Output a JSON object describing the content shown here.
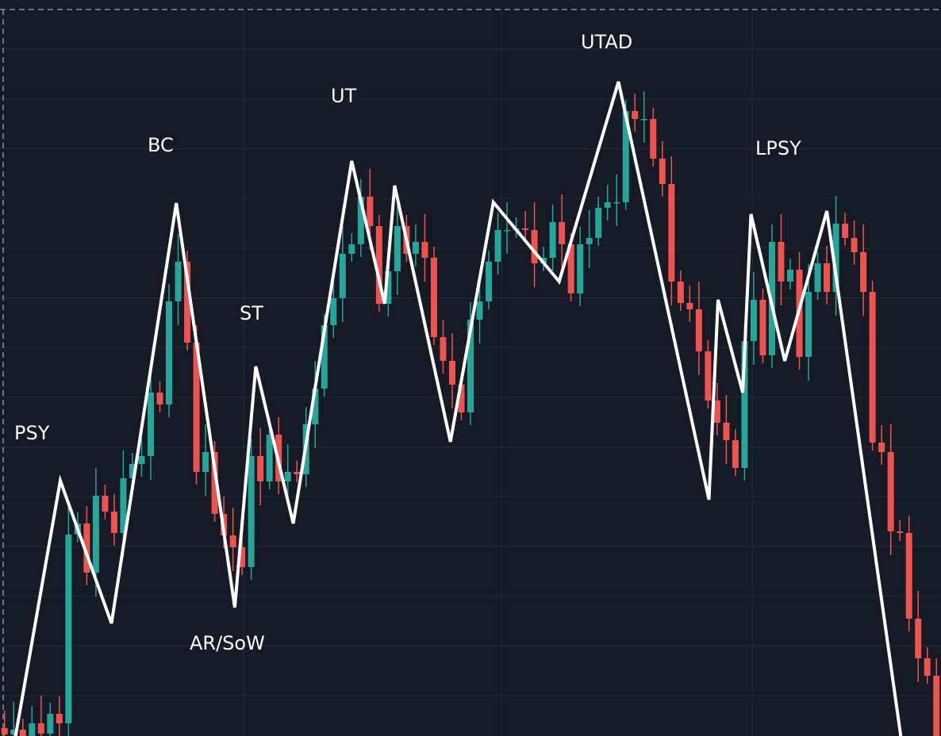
{
  "chart_data": {
    "type": "candlestick",
    "labels": [
      "PSY",
      "BC",
      "AR/SoW",
      "ST",
      "UT",
      "UTAD",
      "LPSY"
    ],
    "up_color": "#26a69a",
    "down_color": "#ef5350",
    "line_color": "#ffffff",
    "xlim": [
      -0.5,
      102.5
    ],
    "ylim": [
      0,
      928
    ],
    "open": [
      10,
      2,
      8,
      0,
      16,
      3,
      28,
      16,
      254,
      268,
      206,
      303,
      283,
      256,
      325,
      343,
      353,
      433,
      418,
      548,
      598,
      496,
      333,
      358,
      280,
      253,
      238,
      213,
      353,
      321,
      380,
      321,
      333,
      330,
      393,
      438,
      518,
      552,
      608,
      620,
      680,
      643,
      545,
      586,
      643,
      608,
      623,
      603,
      503,
      473,
      443,
      408,
      525,
      548,
      598,
      638,
      638,
      640,
      638,
      596,
      603,
      648,
      620,
      558,
      620,
      628,
      666,
      673,
      673,
      788,
      778,
      778,
      728,
      696,
      573,
      546,
      538,
      485,
      423,
      395,
      373,
      338,
      498,
      550,
      480,
      623,
      573,
      588,
      478,
      560,
      596,
      560,
      646,
      628,
      610,
      560,
      370,
      358,
      258,
      256,
      148,
      98,
      76
    ],
    "high": [
      32,
      43,
      22,
      38,
      51,
      42,
      50,
      289,
      282,
      290,
      338,
      317,
      305,
      360,
      357,
      375,
      468,
      447,
      570,
      633,
      612,
      518,
      393,
      372,
      302,
      288,
      252,
      375,
      388,
      394,
      402,
      368,
      347,
      415,
      473,
      532,
      574,
      643,
      634,
      702,
      715,
      657,
      608,
      678,
      657,
      645,
      658,
      617,
      525,
      508,
      457,
      547,
      583,
      612,
      660,
      673,
      654,
      662,
      673,
      617,
      670,
      683,
      634,
      642,
      663,
      680,
      695,
      708,
      802,
      810,
      813,
      792,
      750,
      731,
      587,
      568,
      573,
      499,
      445,
      430,
      387,
      520,
      585,
      564,
      645,
      658,
      602,
      610,
      595,
      610,
      618,
      681,
      660,
      650,
      645,
      574,
      392,
      393,
      272,
      278,
      183,
      112,
      98
    ],
    "low": [
      -14,
      -28,
      -10,
      -16,
      -27,
      -7,
      0,
      -14,
      244,
      190,
      176,
      273,
      240,
      226,
      315,
      327,
      323,
      408,
      402,
      518,
      486,
      317,
      303,
      270,
      237,
      208,
      203,
      197,
      291,
      311,
      305,
      291,
      320,
      314,
      363,
      428,
      502,
      522,
      598,
      604,
      613,
      535,
      529,
      556,
      598,
      592,
      573,
      493,
      457,
      413,
      398,
      392,
      495,
      538,
      582,
      608,
      628,
      622,
      566,
      586,
      587,
      590,
      548,
      542,
      590,
      618,
      650,
      643,
      663,
      762,
      748,
      718,
      680,
      543,
      536,
      522,
      455,
      413,
      379,
      343,
      328,
      322,
      468,
      470,
      464,
      543,
      563,
      462,
      448,
      550,
      544,
      530,
      618,
      594,
      530,
      360,
      342,
      228,
      246,
      132,
      68,
      66,
      -16
    ],
    "close": [
      2,
      8,
      0,
      16,
      3,
      28,
      16,
      254,
      268,
      206,
      303,
      283,
      256,
      325,
      343,
      353,
      433,
      418,
      548,
      598,
      496,
      333,
      358,
      280,
      253,
      238,
      213,
      353,
      321,
      380,
      321,
      333,
      330,
      393,
      438,
      518,
      552,
      608,
      620,
      680,
      643,
      545,
      586,
      643,
      608,
      623,
      603,
      503,
      473,
      443,
      408,
      525,
      548,
      598,
      638,
      638,
      640,
      638,
      596,
      603,
      648,
      620,
      558,
      620,
      628,
      666,
      673,
      673,
      788,
      778,
      778,
      728,
      696,
      573,
      546,
      538,
      485,
      423,
      395,
      373,
      338,
      498,
      550,
      480,
      623,
      573,
      588,
      478,
      560,
      596,
      560,
      646,
      628,
      610,
      560,
      370,
      358,
      258,
      256,
      148,
      98,
      76,
      0
    ],
    "zigzag": {
      "x": [
        1.2,
        6.1,
        11.7,
        18.8,
        25.2,
        27.5,
        31.6,
        38.0,
        41.6,
        42.7,
        48.8,
        53.5,
        60.7,
        67.2,
        77.1,
        78.1,
        80.8,
        81.7,
        85.4,
        90.0,
        98.1
      ],
      "y": [
        0,
        322,
        142,
        672,
        162,
        466,
        268,
        725,
        545,
        694,
        371,
        673,
        573,
        825,
        298,
        550,
        433,
        658,
        473,
        662,
        0
      ]
    }
  }
}
